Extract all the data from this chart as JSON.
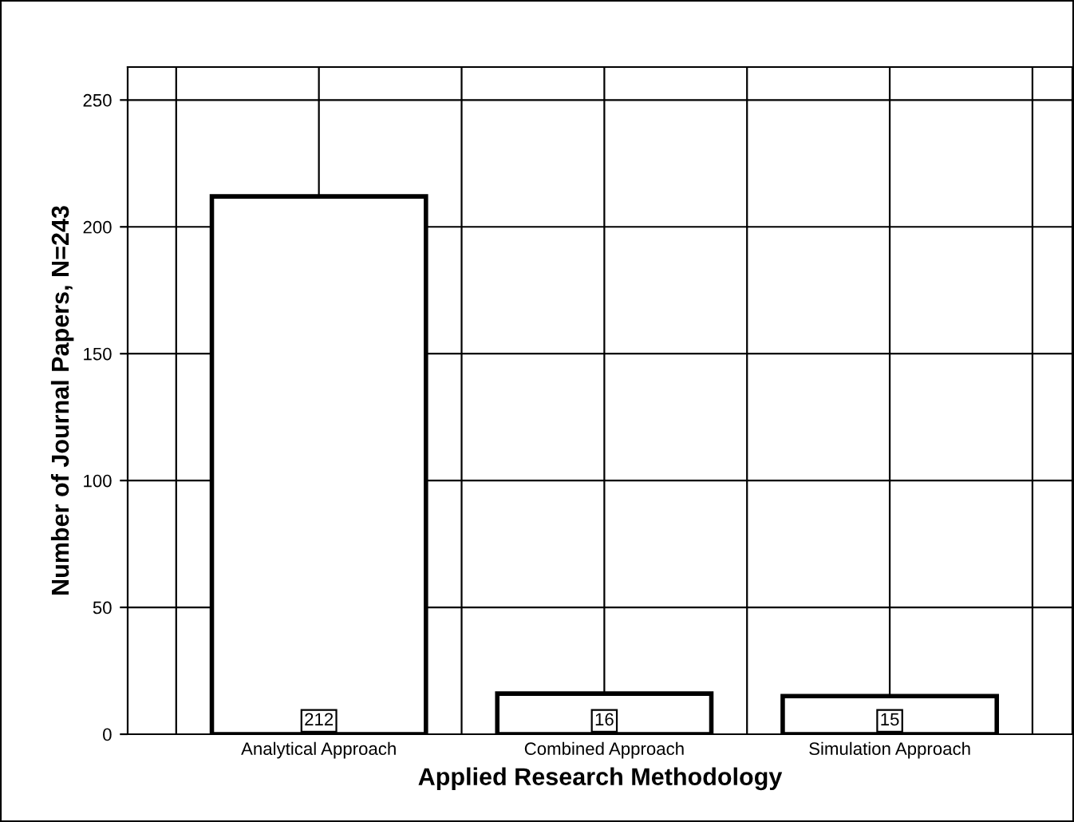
{
  "chart_data": {
    "type": "bar",
    "xlabel": "Applied Research Methodology",
    "ylabel": "Number of Journal Papers, N=243",
    "categories": [
      "Analytical Approach",
      "Combined Approach",
      "Simulation Approach"
    ],
    "values": [
      212,
      16,
      15
    ],
    "color": "#ffffff",
    "ylim": [
      0,
      263
    ],
    "yticks": [
      0,
      50,
      100,
      150,
      200,
      250
    ],
    "grid": true,
    "data_labels": true
  }
}
